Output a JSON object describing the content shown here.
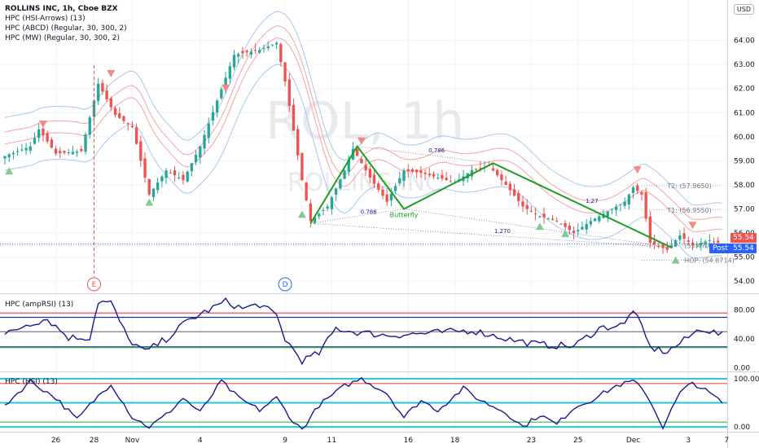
{
  "header": {
    "symbol_line": "ROLLINS INC, 1h, Cboe BZX",
    "indicator_1": "HPC (HSI-Arrows) (13)",
    "indicator_2": "HPC (ABCD) (Regular, 30, 300, 2)",
    "indicator_3": "HPC (MW) (Regular, 30, 300, 2)",
    "currency": "USD"
  },
  "watermark": {
    "big": "ROL, 1h",
    "small": "ROLLINS INC"
  },
  "colors": {
    "up": "#26a69a",
    "down": "#ef5350",
    "pattern": "#1e9e1e",
    "band_red": "#f5a3a3",
    "band_blue": "#a9c7ee",
    "rsi_line": "#1a1a8c",
    "price_tag": "#ef5350",
    "post_tag": "#2962ff",
    "hsi_cyan": "#26c6da"
  },
  "chart_data": [
    {
      "type": "candlestick",
      "title": "ROLLINS INC, 1h, Cboe BZX",
      "xlabel": "",
      "ylabel": "",
      "ylim": [
        53.5,
        65
      ],
      "y_ticks": [
        "54.00",
        "55.00",
        "56.00",
        "57.00",
        "58.00",
        "59.00",
        "60.00",
        "61.00",
        "62.00",
        "63.00",
        "64.00"
      ],
      "x_ticks": [
        "26",
        "28",
        "Nov",
        "4",
        "9",
        "11",
        "16",
        "18",
        "23",
        "25",
        "Dec",
        "3",
        "7"
      ],
      "last_price": "55.54",
      "post_label": "Post",
      "post_price": "55.54",
      "key_points": [
        {
          "bar": 0,
          "price": 59.2
        },
        {
          "bar": 6,
          "price": 59.6
        },
        {
          "bar": 8,
          "price": 60.3
        },
        {
          "bar": 12,
          "price": 59.3
        },
        {
          "bar": 18,
          "price": 59.4
        },
        {
          "bar": 22,
          "price": 62.2
        },
        {
          "bar": 26,
          "price": 60.9
        },
        {
          "bar": 30,
          "price": 60.4
        },
        {
          "bar": 34,
          "price": 57.6
        },
        {
          "bar": 38,
          "price": 58.6
        },
        {
          "bar": 42,
          "price": 58.2
        },
        {
          "bar": 46,
          "price": 59.6
        },
        {
          "bar": 50,
          "price": 61.5
        },
        {
          "bar": 54,
          "price": 63.4
        },
        {
          "bar": 60,
          "price": 63.6
        },
        {
          "bar": 64,
          "price": 63.9
        },
        {
          "bar": 66,
          "price": 62.3
        },
        {
          "bar": 70,
          "price": 58.2
        },
        {
          "bar": 72,
          "price": 56.5
        },
        {
          "bar": 76,
          "price": 57.1
        },
        {
          "bar": 80,
          "price": 58.6
        },
        {
          "bar": 82,
          "price": 59.5
        },
        {
          "bar": 86,
          "price": 58.3
        },
        {
          "bar": 90,
          "price": 57.3
        },
        {
          "bar": 94,
          "price": 58.6
        },
        {
          "bar": 98,
          "price": 58.5
        },
        {
          "bar": 102,
          "price": 58.3
        },
        {
          "bar": 106,
          "price": 58.1
        },
        {
          "bar": 110,
          "price": 58.6
        },
        {
          "bar": 114,
          "price": 58.8
        },
        {
          "bar": 118,
          "price": 58.0
        },
        {
          "bar": 122,
          "price": 57.1
        },
        {
          "bar": 126,
          "price": 56.7
        },
        {
          "bar": 130,
          "price": 56.5
        },
        {
          "bar": 134,
          "price": 56.0
        },
        {
          "bar": 138,
          "price": 56.5
        },
        {
          "bar": 142,
          "price": 56.9
        },
        {
          "bar": 146,
          "price": 57.3
        },
        {
          "bar": 148,
          "price": 57.9
        },
        {
          "bar": 150,
          "price": 57.6
        },
        {
          "bar": 152,
          "price": 55.6
        },
        {
          "bar": 156,
          "price": 55.3
        },
        {
          "bar": 159,
          "price": 55.9
        },
        {
          "bar": 162,
          "price": 55.5
        },
        {
          "bar": 166,
          "price": 55.7
        },
        {
          "bar": 169,
          "price": 55.54
        }
      ],
      "abcd_pattern": {
        "name": "Butterfly",
        "points": [
          {
            "bar": 72,
            "price": 56.4
          },
          {
            "bar": 83,
            "price": 59.6
          },
          {
            "bar": 94,
            "price": 57.0
          },
          {
            "bar": 115,
            "price": 58.9
          },
          {
            "bar": 157,
            "price": 55.4
          }
        ],
        "ratio_labels": [
          "0.786",
          "0.786",
          "1.27",
          "1.270"
        ]
      },
      "targets": [
        {
          "label": "T2: (57.9650)",
          "price": 57.965
        },
        {
          "label": "T1: (56.9550)",
          "price": 56.955
        },
        {
          "label": "(55.4709)",
          "price": 55.4709
        },
        {
          "label": "HOP: (54.8714)",
          "price": 54.8714
        }
      ],
      "events": [
        {
          "label": "E",
          "bar": 21
        },
        {
          "label": "D",
          "bar": 66
        }
      ],
      "arrows_down": [
        {
          "bar": 9,
          "price": 60.5
        },
        {
          "bar": 25,
          "price": 62.6
        },
        {
          "bar": 52,
          "price": 62.0
        },
        {
          "bar": 84,
          "price": 59.8
        },
        {
          "bar": 149,
          "price": 58.6
        },
        {
          "bar": 162,
          "price": 56.3
        }
      ],
      "arrows_up": [
        {
          "bar": 1,
          "price": 58.6
        },
        {
          "bar": 34,
          "price": 57.3
        },
        {
          "bar": 70,
          "price": 56.8
        },
        {
          "bar": 126,
          "price": 56.3
        },
        {
          "bar": 132,
          "price": 56.0
        },
        {
          "bar": 158,
          "price": 54.9
        }
      ]
    },
    {
      "type": "line",
      "title": "HPC (ampRSI) (13)",
      "xlabel": "",
      "ylabel": "",
      "ylim": [
        -5,
        100
      ],
      "y_ticks": [
        "80.00",
        "40.00",
        "0.00"
      ],
      "levels": [
        {
          "value": 76,
          "color": "#ef5350"
        },
        {
          "value": 70,
          "color": "#1a1aa6"
        },
        {
          "value": 50,
          "color": "#787b86"
        },
        {
          "value": 29,
          "color": "#1a1aa6"
        },
        {
          "value": 28,
          "color": "#4caf50"
        }
      ],
      "key_points": [
        {
          "bar": 0,
          "v": 45
        },
        {
          "bar": 5,
          "v": 60
        },
        {
          "bar": 10,
          "v": 68
        },
        {
          "bar": 15,
          "v": 42
        },
        {
          "bar": 20,
          "v": 42
        },
        {
          "bar": 22,
          "v": 92
        },
        {
          "bar": 25,
          "v": 90
        },
        {
          "bar": 29,
          "v": 40
        },
        {
          "bar": 33,
          "v": 22
        },
        {
          "bar": 38,
          "v": 40
        },
        {
          "bar": 43,
          "v": 65
        },
        {
          "bar": 48,
          "v": 80
        },
        {
          "bar": 52,
          "v": 92
        },
        {
          "bar": 56,
          "v": 82
        },
        {
          "bar": 60,
          "v": 88
        },
        {
          "bar": 64,
          "v": 72
        },
        {
          "bar": 66,
          "v": 40
        },
        {
          "bar": 70,
          "v": 10
        },
        {
          "bar": 74,
          "v": 20
        },
        {
          "bar": 78,
          "v": 55
        },
        {
          "bar": 82,
          "v": 50
        },
        {
          "bar": 90,
          "v": 45
        },
        {
          "bar": 100,
          "v": 48
        },
        {
          "bar": 110,
          "v": 52
        },
        {
          "bar": 120,
          "v": 38
        },
        {
          "bar": 126,
          "v": 32
        },
        {
          "bar": 134,
          "v": 30
        },
        {
          "bar": 140,
          "v": 55
        },
        {
          "bar": 146,
          "v": 60
        },
        {
          "bar": 148,
          "v": 82
        },
        {
          "bar": 152,
          "v": 28
        },
        {
          "bar": 156,
          "v": 22
        },
        {
          "bar": 160,
          "v": 38
        },
        {
          "bar": 164,
          "v": 55
        },
        {
          "bar": 169,
          "v": 45
        }
      ]
    },
    {
      "type": "line",
      "title": "HPC (HSI) (13)",
      "xlabel": "",
      "ylabel": "",
      "ylim": [
        -10,
        110
      ],
      "y_ticks": [
        "100.00",
        "0.00"
      ],
      "levels": [
        {
          "value": 100,
          "color": "#26c6da"
        },
        {
          "value": 90,
          "color": "#ef5350"
        },
        {
          "value": 50,
          "color": "#26c6da"
        },
        {
          "value": 10,
          "color": "#4caf50"
        },
        {
          "value": 0,
          "color": "#26c6da"
        }
      ],
      "key_points": [
        {
          "bar": 0,
          "v": 45
        },
        {
          "bar": 6,
          "v": 95
        },
        {
          "bar": 12,
          "v": 60
        },
        {
          "bar": 17,
          "v": 15
        },
        {
          "bar": 21,
          "v": 55
        },
        {
          "bar": 25,
          "v": 90
        },
        {
          "bar": 30,
          "v": 20
        },
        {
          "bar": 34,
          "v": 0
        },
        {
          "bar": 38,
          "v": 25
        },
        {
          "bar": 42,
          "v": 60
        },
        {
          "bar": 46,
          "v": 30
        },
        {
          "bar": 51,
          "v": 95
        },
        {
          "bar": 55,
          "v": 60
        },
        {
          "bar": 60,
          "v": 35
        },
        {
          "bar": 64,
          "v": 60
        },
        {
          "bar": 68,
          "v": 10
        },
        {
          "bar": 70,
          "v": -5
        },
        {
          "bar": 74,
          "v": 45
        },
        {
          "bar": 80,
          "v": 85
        },
        {
          "bar": 84,
          "v": 100
        },
        {
          "bar": 90,
          "v": 70
        },
        {
          "bar": 94,
          "v": 20
        },
        {
          "bar": 98,
          "v": 55
        },
        {
          "bar": 102,
          "v": 35
        },
        {
          "bar": 108,
          "v": 80
        },
        {
          "bar": 112,
          "v": 55
        },
        {
          "bar": 118,
          "v": 30
        },
        {
          "bar": 122,
          "v": 0
        },
        {
          "bar": 126,
          "v": 25
        },
        {
          "bar": 130,
          "v": 5
        },
        {
          "bar": 134,
          "v": 40
        },
        {
          "bar": 138,
          "v": 55
        },
        {
          "bar": 144,
          "v": 85
        },
        {
          "bar": 148,
          "v": 95
        },
        {
          "bar": 151,
          "v": 70
        },
        {
          "bar": 155,
          "v": 0
        },
        {
          "bar": 159,
          "v": 70
        },
        {
          "bar": 162,
          "v": 92
        },
        {
          "bar": 166,
          "v": 70
        },
        {
          "bar": 169,
          "v": 50
        }
      ]
    }
  ]
}
